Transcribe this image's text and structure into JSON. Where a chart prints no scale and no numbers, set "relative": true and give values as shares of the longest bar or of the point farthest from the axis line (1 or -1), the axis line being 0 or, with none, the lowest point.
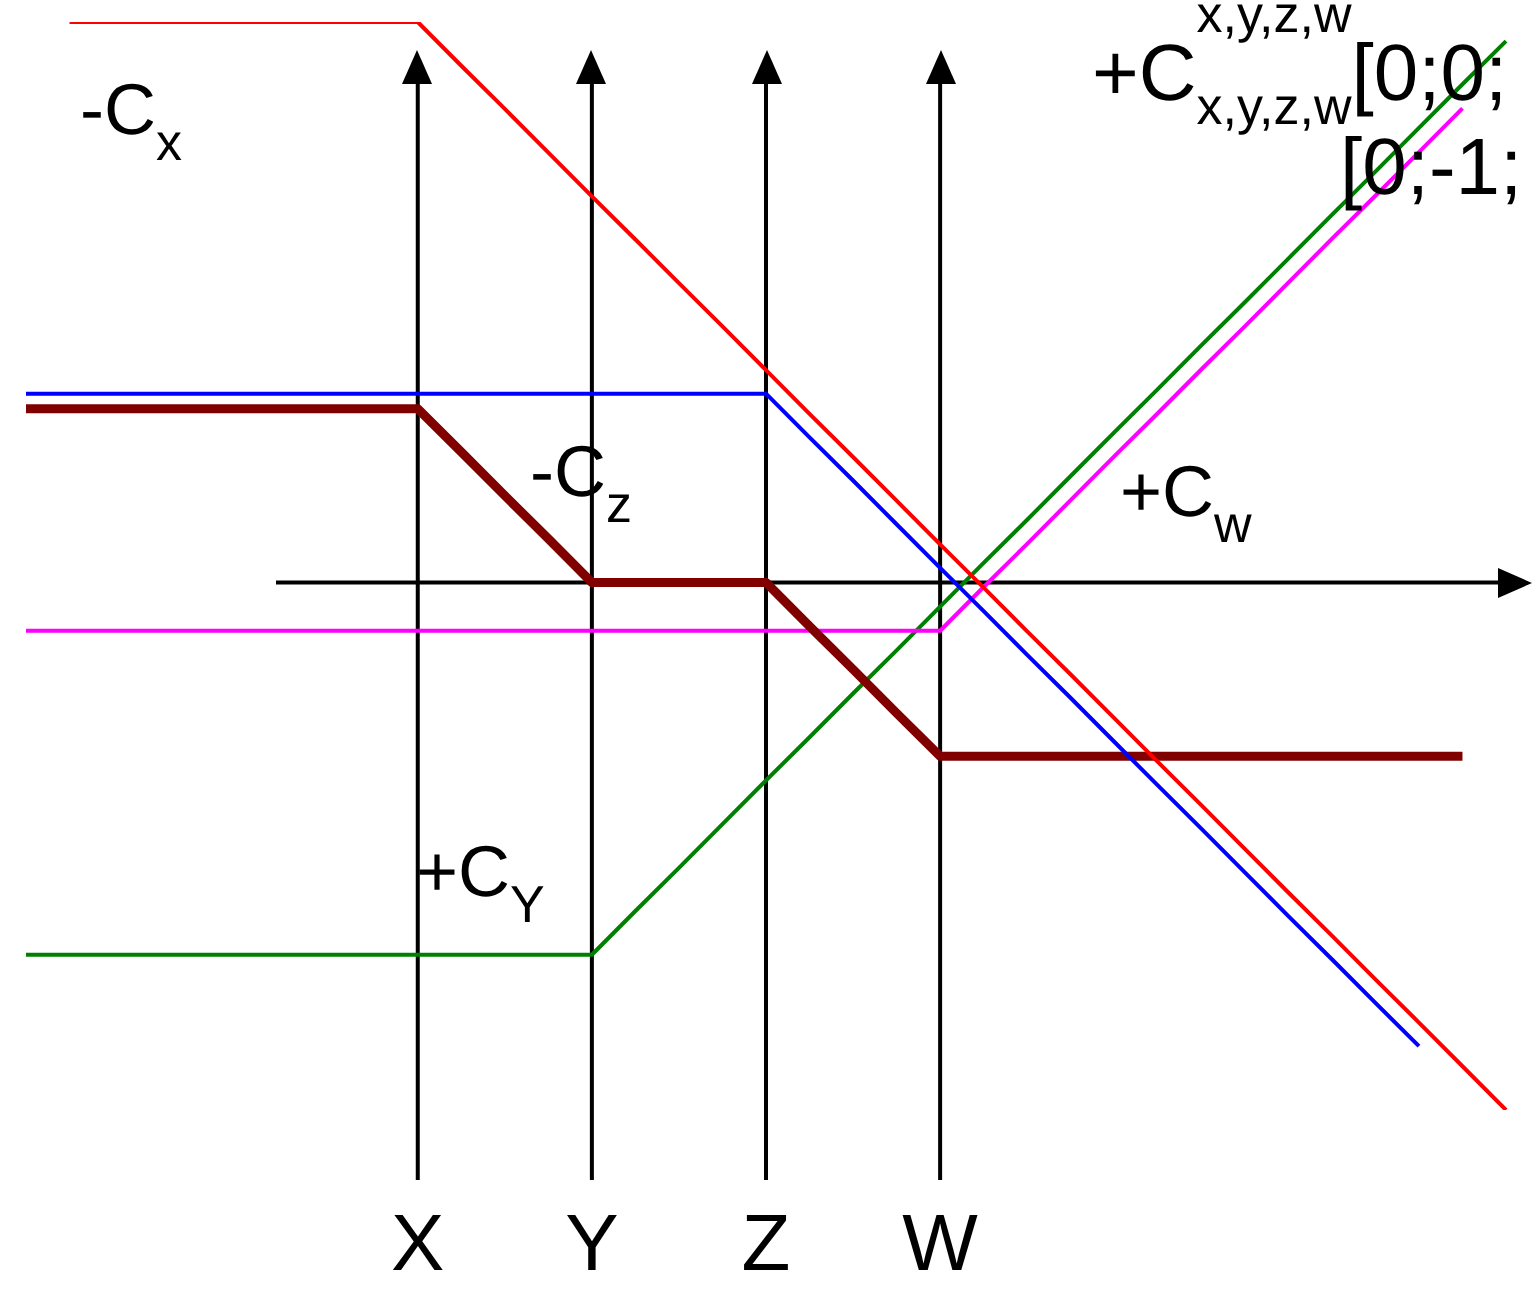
{
  "chart_data": {
    "type": "line",
    "relative": true,
    "categories": [
      null,
      null,
      null,
      null,
      null,
      null,
      null,
      null,
      null,
      "X",
      null,
      null,
      null,
      "Y",
      null,
      null,
      null,
      "Z",
      null,
      null,
      null,
      "W",
      null,
      null,
      null,
      null,
      null,
      null,
      null,
      null,
      null,
      null,
      null,
      null,
      null
    ],
    "series": [
      {
        "name": "-C$_{x}$",
        "color": "#ff0000",
        "values": [
          null,
          1,
          1,
          1,
          1,
          1,
          1,
          1,
          1,
          1,
          0.922,
          0.845,
          0.767,
          0.689,
          0.612,
          0.534,
          0.457,
          0.379,
          0.301,
          0.224,
          0.146,
          0.068,
          -0.009,
          -0.087,
          -0.164,
          -0.242,
          -0.32,
          -0.397,
          -0.475,
          -0.553,
          -0.63,
          -0.708,
          -0.785,
          -0.863,
          -0.941
        ]
      },
      {
        "name": "-C$_{z}$",
        "color": "#0000ff",
        "values": [
          0.337,
          0.337,
          0.337,
          0.337,
          0.337,
          0.337,
          0.337,
          0.337,
          0.337,
          0.337,
          0.337,
          0.337,
          0.337,
          0.337,
          0.337,
          0.337,
          0.337,
          0.337,
          0.259,
          0.182,
          0.104,
          0.026,
          -0.051,
          -0.129,
          -0.206,
          -0.284,
          -0.362,
          -0.439,
          -0.517,
          -0.595,
          -0.672,
          -0.75,
          -0.827,
          null,
          null
        ]
      },
      {
        "color": "#800000",
        "values": [
          0.31,
          0.31,
          0.31,
          0.31,
          0.31,
          0.31,
          0.31,
          0.31,
          0.31,
          0.31,
          0.233,
          0.155,
          0.078,
          0,
          0,
          0,
          0,
          0,
          -0.078,
          -0.155,
          -0.233,
          -0.31,
          -0.31,
          -0.31,
          -0.31,
          -0.31,
          -0.31,
          -0.31,
          -0.31,
          -0.31,
          -0.31,
          -0.31,
          -0.31,
          -0.31,
          null
        ]
      },
      {
        "name": "+C$_{w}$",
        "color": "#ff00ff",
        "values": [
          -0.086,
          -0.086,
          -0.086,
          -0.086,
          -0.086,
          -0.086,
          -0.086,
          -0.086,
          -0.086,
          -0.086,
          -0.086,
          -0.086,
          -0.086,
          -0.086,
          -0.086,
          -0.086,
          -0.086,
          -0.086,
          -0.086,
          -0.086,
          -0.086,
          -0.086,
          -0.008,
          0.069,
          0.147,
          0.225,
          0.302,
          0.38,
          0.457,
          0.535,
          0.613,
          0.69,
          0.768,
          0.846,
          null
        ]
      },
      {
        "name": "+C$_{Y}$",
        "color": "#008000",
        "values": [
          -0.664,
          -0.664,
          -0.664,
          -0.664,
          -0.664,
          -0.664,
          -0.664,
          -0.664,
          -0.664,
          -0.664,
          -0.664,
          -0.664,
          -0.664,
          -0.664,
          -0.586,
          -0.509,
          -0.431,
          -0.353,
          -0.276,
          -0.198,
          -0.121,
          -0.043,
          0.035,
          0.112,
          0.19,
          0.268,
          0.345,
          0.423,
          0.5,
          0.578,
          0.656,
          0.733,
          0.811,
          0.889,
          0.966
        ]
      }
    ],
    "ref_lines": [
      {
        "axis": "x",
        "value": "X"
      },
      {
        "axis": "x",
        "value": "Y"
      },
      {
        "axis": "x",
        "value": "Z"
      },
      {
        "axis": "x",
        "value": "W"
      }
    ],
    "annotations": [
      "+C$^{x,y,z,w}$$_{x,y,z,w}$[0;0;",
      "[0;-1;"
    ]
  }
}
